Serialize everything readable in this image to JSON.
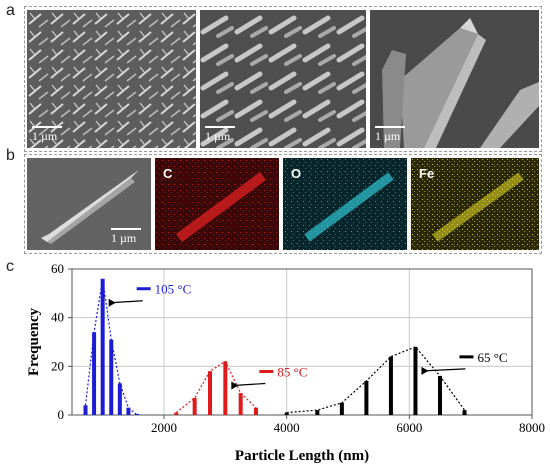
{
  "panels": {
    "a": "a",
    "b": "b",
    "c": "c"
  },
  "sem_scale": "1 µm",
  "eds_elements": [
    "C",
    "O",
    "Fe"
  ],
  "eds_colors": [
    "#c21818",
    "#1aa7b5",
    "#c9c21c"
  ],
  "chart_data": {
    "type": "bar",
    "xlabel": "Particle Length (nm)",
    "ylabel": "Frequency",
    "xlim": [
      500,
      8000
    ],
    "ylim": [
      0,
      60
    ],
    "xticks": [
      "2000",
      "4000",
      "6000",
      "8000"
    ],
    "yticks": [
      "0",
      "20",
      "40",
      "60"
    ],
    "grid": true,
    "series": [
      {
        "name": "105 °C",
        "color": "#1c1cd6",
        "x": [
          720,
          860,
          1000,
          1140,
          1280,
          1420,
          1560
        ],
        "values": [
          4,
          34,
          56,
          31,
          13,
          3,
          0
        ]
      },
      {
        "name": "85 °C",
        "color": "#e01a1a",
        "x": [
          2200,
          2500,
          2750,
          3000,
          3250,
          3500
        ],
        "values": [
          1,
          7,
          18,
          22,
          9,
          3
        ]
      },
      {
        "name": "65 °C",
        "color": "#000000",
        "x": [
          4000,
          4500,
          4900,
          5300,
          5700,
          6100,
          6500,
          6900
        ],
        "values": [
          1,
          2,
          5,
          14,
          24,
          28,
          16,
          2
        ]
      }
    ]
  }
}
